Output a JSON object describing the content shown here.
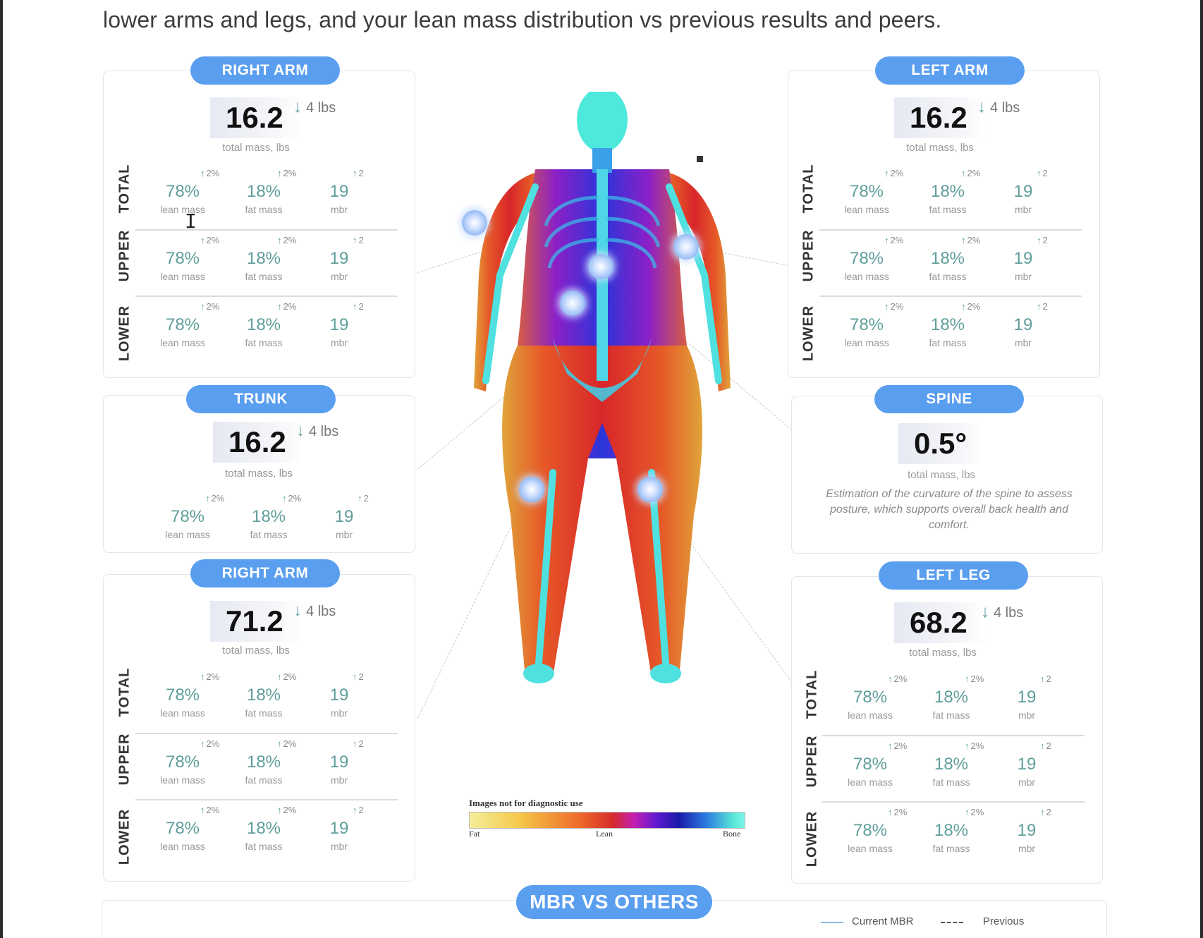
{
  "intro_text": "lower arms and legs, and your lean mass distribution vs previous results and peers.",
  "mass_caption": "total mass, lbs",
  "metric_labels": {
    "lean": "lean mass",
    "fat": "fat mass",
    "mbr": "mbr"
  },
  "metric_values": {
    "lean": "78%",
    "fat": "18%",
    "mbr": "19"
  },
  "metric_changes": {
    "lean": "2%",
    "fat": "2%",
    "mbr": "2"
  },
  "section_labels": {
    "total": "TOTAL",
    "upper": "UPPER",
    "lower": "LOWER"
  },
  "cards": {
    "right_arm_top": {
      "title": "RIGHT ARM",
      "mass": "16.2",
      "delta": "4 lbs"
    },
    "left_arm": {
      "title": "LEFT ARM",
      "mass": "16.2",
      "delta": "4 lbs"
    },
    "trunk": {
      "title": "TRUNK",
      "mass": "16.2",
      "delta": "4 lbs"
    },
    "spine": {
      "title": "SPINE",
      "mass": "0.5°",
      "caption": "total mass, lbs",
      "description": "Estimation of the curvature of the spine to assess posture, which supports overall back health and comfort."
    },
    "right_arm_bottom": {
      "title": "RIGHT ARM",
      "mass": "71.2",
      "delta": "4 lbs"
    },
    "left_leg": {
      "title": "LEFT LEG",
      "mass": "68.2",
      "delta": "4 lbs"
    }
  },
  "scan_legend": {
    "caption": "Images not for diagnostic use",
    "fat": "Fat",
    "lean": "Lean",
    "bone": "Bone"
  },
  "mbr_section": {
    "title": "MBR VS OTHERS",
    "legend_current": "Current MBR",
    "legend_previous": "Previous"
  },
  "colors": {
    "accent": "#5a9ef0",
    "metric": "#5f9e9b"
  }
}
